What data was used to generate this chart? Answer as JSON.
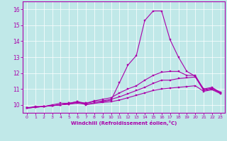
{
  "xlabel": "Windchill (Refroidissement éolien,°C)",
  "xlim": [
    -0.5,
    23.5
  ],
  "ylim": [
    9.5,
    16.5
  ],
  "xticks": [
    0,
    1,
    2,
    3,
    4,
    5,
    6,
    7,
    8,
    9,
    10,
    11,
    12,
    13,
    14,
    15,
    16,
    17,
    18,
    19,
    20,
    21,
    22,
    23
  ],
  "yticks": [
    10,
    11,
    12,
    13,
    14,
    15,
    16
  ],
  "bg_color": "#c0e8e8",
  "line_color": "#aa00aa",
  "grid_color": "#b0d8d8",
  "lines": [
    {
      "x": [
        0,
        1,
        2,
        3,
        4,
        5,
        6,
        7,
        8,
        9,
        10,
        11,
        12,
        13,
        14,
        15,
        16,
        17,
        18,
        19,
        20,
        21,
        22,
        23
      ],
      "y": [
        9.8,
        9.85,
        9.9,
        9.95,
        10.0,
        10.05,
        10.1,
        10.05,
        10.1,
        10.15,
        10.2,
        10.3,
        10.45,
        10.6,
        10.75,
        10.9,
        11.0,
        11.05,
        11.1,
        11.15,
        11.2,
        10.85,
        10.95,
        10.7
      ]
    },
    {
      "x": [
        0,
        1,
        2,
        3,
        4,
        5,
        6,
        7,
        8,
        9,
        10,
        11,
        12,
        13,
        14,
        15,
        16,
        17,
        18,
        19,
        20,
        21,
        22,
        23
      ],
      "y": [
        9.8,
        9.85,
        9.9,
        9.95,
        10.0,
        10.05,
        10.15,
        10.1,
        10.2,
        10.25,
        10.35,
        10.5,
        10.7,
        10.9,
        11.1,
        11.35,
        11.55,
        11.55,
        11.65,
        11.7,
        11.75,
        10.9,
        11.0,
        10.75
      ]
    },
    {
      "x": [
        0,
        1,
        2,
        3,
        4,
        5,
        6,
        7,
        8,
        9,
        10,
        11,
        12,
        13,
        14,
        15,
        16,
        17,
        18,
        19,
        20,
        21,
        22,
        23
      ],
      "y": [
        9.8,
        9.85,
        9.9,
        9.95,
        10.0,
        10.1,
        10.2,
        10.1,
        10.25,
        10.35,
        10.45,
        10.75,
        11.0,
        11.2,
        11.55,
        11.85,
        12.05,
        12.1,
        12.1,
        11.85,
        11.85,
        10.95,
        11.05,
        10.8
      ]
    },
    {
      "x": [
        0,
        1,
        2,
        3,
        4,
        5,
        6,
        7,
        8,
        9,
        10,
        11,
        12,
        13,
        14,
        15,
        16,
        17,
        18,
        19,
        20,
        21,
        22,
        23
      ],
      "y": [
        9.8,
        9.9,
        9.9,
        10.0,
        10.1,
        10.1,
        10.2,
        10.0,
        10.1,
        10.2,
        10.3,
        11.4,
        12.5,
        13.1,
        15.3,
        15.9,
        15.9,
        14.1,
        13.0,
        12.1,
        11.8,
        11.0,
        11.1,
        10.75
      ]
    }
  ]
}
